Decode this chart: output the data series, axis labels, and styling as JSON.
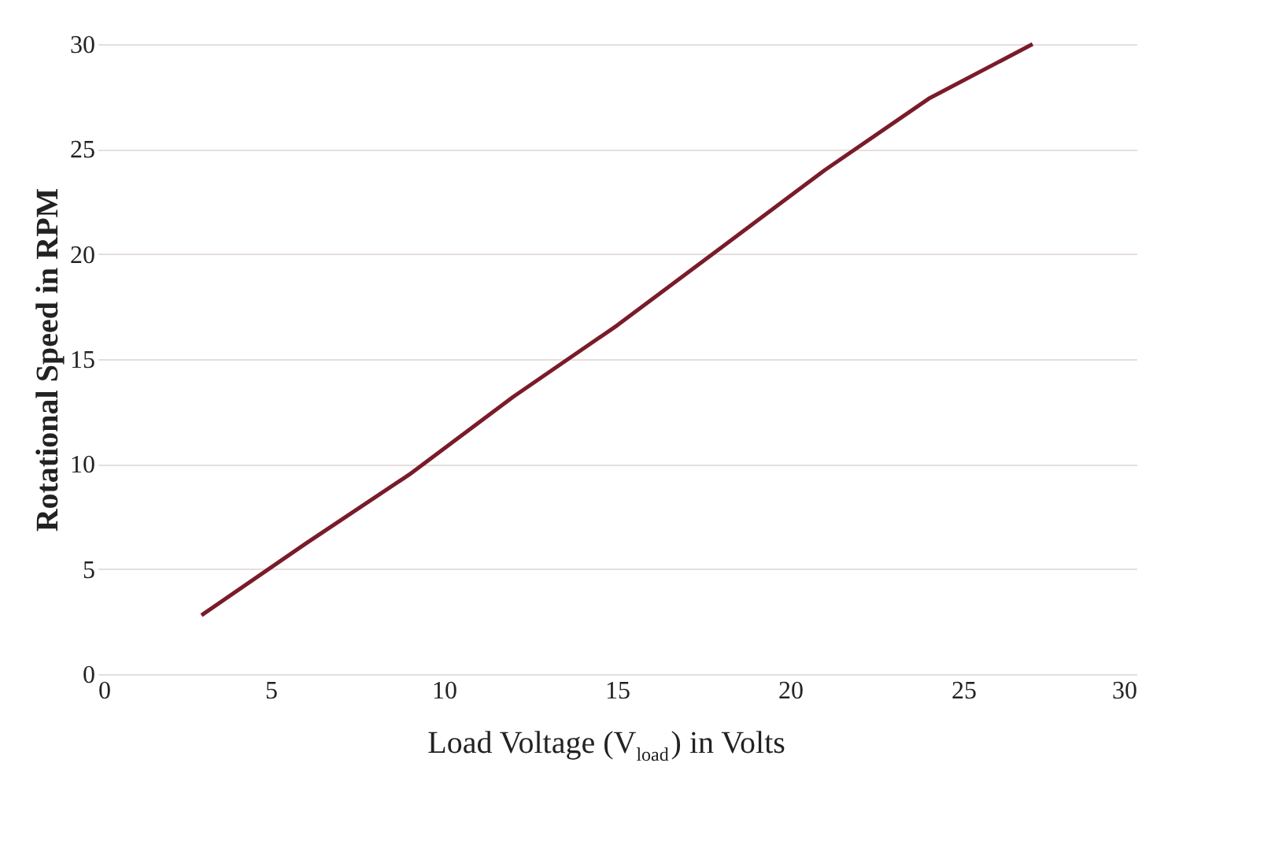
{
  "chart_data": {
    "type": "line",
    "xlabel": "Load Voltage (V$_{load}$) in Volts",
    "ylabel": "Rotational Speed in RPM",
    "x": [
      3,
      6,
      9,
      12,
      15,
      18,
      21,
      24,
      27
    ],
    "series": [
      {
        "color": "#7a1b2a",
        "values": [
          2.8,
          6.2,
          9.5,
          13.2,
          16.6,
          20.3,
          24.0,
          27.4,
          30.0
        ]
      }
    ],
    "xlim": [
      0,
      30
    ],
    "xticks": [
      0,
      5,
      10,
      15,
      20,
      25,
      30
    ],
    "ylim": [
      0,
      30
    ],
    "yticks": [
      0,
      5,
      10,
      15,
      20,
      25,
      30
    ],
    "grid": "y",
    "marker": "none",
    "line_style": "solid"
  }
}
